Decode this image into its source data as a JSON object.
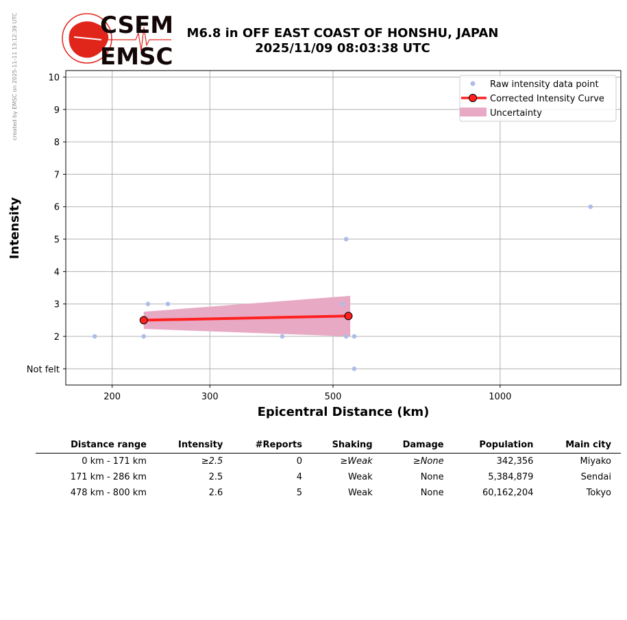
{
  "created_note": "created by EMSC on 2025-11-11 13:12:39 UTC",
  "logo": {
    "line1": "CSEM",
    "line2": "EMSC",
    "color": "#e0251b"
  },
  "title_line1": "M6.8 in OFF EAST COAST OF HONSHU, JAPAN",
  "title_line2": "2025/11/09 08:03:38 UTC",
  "colors": {
    "raw": "#aebde8",
    "curve": "#ff2020",
    "uncertainty": "#e8a9c4",
    "grid": "#b0b0b0"
  },
  "chart_data": {
    "type": "scatter",
    "xlabel": "Epicentral Distance (km)",
    "ylabel": "Intensity",
    "x_scale": "log",
    "xlim": [
      165,
      1650
    ],
    "ylim": [
      0.5,
      10.2
    ],
    "x_ticks": [
      {
        "value": 200,
        "label": "200"
      },
      {
        "value": 300,
        "label": "300"
      },
      {
        "value": 500,
        "label": "500"
      },
      {
        "value": 1000,
        "label": "1000"
      }
    ],
    "y_ticks": [
      {
        "value": 1,
        "label": "Not felt"
      },
      {
        "value": 2,
        "label": "2"
      },
      {
        "value": 3,
        "label": "3"
      },
      {
        "value": 4,
        "label": "4"
      },
      {
        "value": 5,
        "label": "5"
      },
      {
        "value": 6,
        "label": "6"
      },
      {
        "value": 7,
        "label": "7"
      },
      {
        "value": 8,
        "label": "8"
      },
      {
        "value": 9,
        "label": "9"
      },
      {
        "value": 10,
        "label": "10"
      }
    ],
    "grid": true,
    "legend_position": "top-right",
    "series": [
      {
        "name": "Raw intensity data point",
        "type": "scatter",
        "points": [
          [
            186,
            2
          ],
          [
            228,
            2
          ],
          [
            232,
            3
          ],
          [
            252,
            3
          ],
          [
            405,
            2
          ],
          [
            520,
            3
          ],
          [
            528,
            5
          ],
          [
            528,
            2
          ],
          [
            546,
            2
          ],
          [
            546,
            1
          ],
          [
            1455,
            6
          ]
        ]
      },
      {
        "name": "Corrected Intensity Curve",
        "type": "line",
        "points": [
          [
            228,
            2.5
          ],
          [
            533,
            2.63
          ]
        ]
      },
      {
        "name": "Uncertainty",
        "type": "band",
        "x": [
          228,
          537
        ],
        "lower": [
          2.23,
          2.0
        ],
        "upper": [
          2.76,
          3.25
        ]
      }
    ]
  },
  "table": {
    "headers": [
      "Distance range",
      "Intensity",
      "#Reports",
      "Shaking",
      "Damage",
      "Population",
      "Main city"
    ],
    "rows": [
      {
        "range": "0 km -  171 km",
        "intensity_prefix": "≥",
        "intensity": "2.5",
        "reports": "0",
        "shaking_prefix": "≥",
        "shaking": "Weak",
        "damage_prefix": "≥",
        "damage": "None",
        "population": "342,356",
        "city": "Miyako"
      },
      {
        "range": "171 km -  286 km",
        "intensity_prefix": "",
        "intensity": "2.5",
        "reports": "4",
        "shaking_prefix": "",
        "shaking": "Weak",
        "damage_prefix": "",
        "damage": "None",
        "population": "5,384,879",
        "city": "Sendai"
      },
      {
        "range": "478 km -  800 km",
        "intensity_prefix": "",
        "intensity": "2.6",
        "reports": "5",
        "shaking_prefix": "",
        "shaking": "Weak",
        "damage_prefix": "",
        "damage": "None",
        "population": "60,162,204",
        "city": "Tokyo"
      }
    ]
  }
}
